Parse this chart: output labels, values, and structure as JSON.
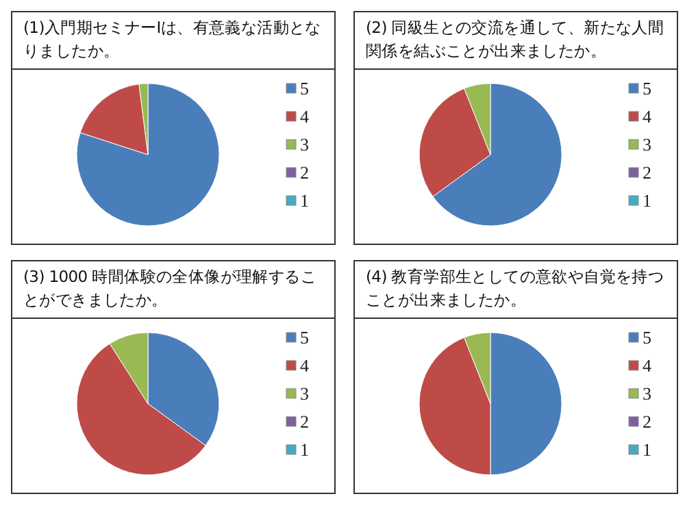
{
  "chart_data": [
    {
      "type": "pie",
      "title": "(1)入門期セミナーⅠは、有意義な活動となりましたか。",
      "categories": [
        "5",
        "4",
        "3",
        "2",
        "1"
      ],
      "values": [
        80,
        18,
        2,
        0,
        0
      ],
      "colors": [
        "#4a7ebb",
        "#be4b48",
        "#98b954",
        "#7d60a0",
        "#46aac5"
      ],
      "legend": "right"
    },
    {
      "type": "pie",
      "title": "(2) 同級生との交流を通して、新たな人間関係を結ぶことが出来ましたか。",
      "categories": [
        "5",
        "4",
        "3",
        "2",
        "1"
      ],
      "values": [
        65,
        29,
        6,
        0,
        0
      ],
      "colors": [
        "#4a7ebb",
        "#be4b48",
        "#98b954",
        "#7d60a0",
        "#46aac5"
      ],
      "legend": "right"
    },
    {
      "type": "pie",
      "title": "(3) 1000 時間体験の全体像が理解することができましたか。",
      "categories": [
        "5",
        "4",
        "3",
        "2",
        "1"
      ],
      "values": [
        35,
        56,
        9,
        0,
        0
      ],
      "colors": [
        "#4a7ebb",
        "#be4b48",
        "#98b954",
        "#7d60a0",
        "#46aac5"
      ],
      "legend": "right"
    },
    {
      "type": "pie",
      "title": "(4) 教育学部生としての意欲や自覚を持つことが出来ましたか。",
      "categories": [
        "5",
        "4",
        "3",
        "2",
        "1"
      ],
      "values": [
        50,
        44,
        6,
        0,
        0
      ],
      "colors": [
        "#4a7ebb",
        "#be4b48",
        "#98b954",
        "#7d60a0",
        "#46aac5"
      ],
      "legend": "right"
    }
  ]
}
